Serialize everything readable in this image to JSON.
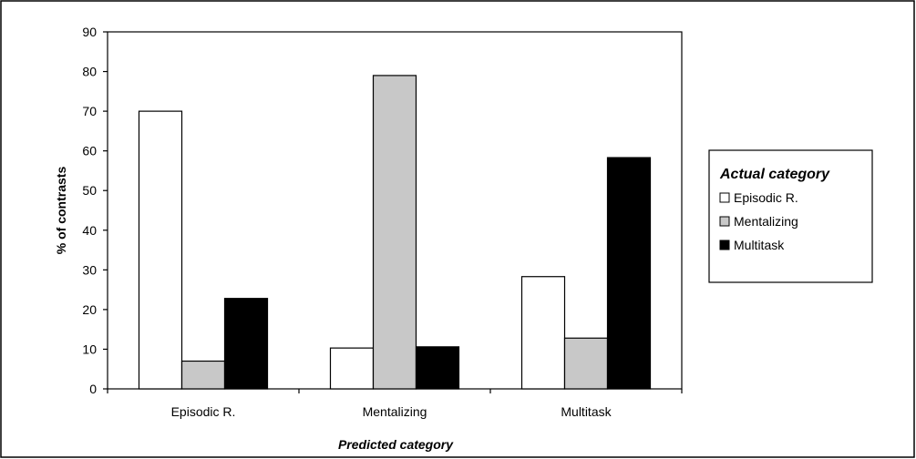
{
  "chart_data": {
    "type": "bar",
    "categories": [
      "Episodic R.",
      "Mentalizing",
      "Multitask"
    ],
    "series": [
      {
        "name": "Episodic R.",
        "values": [
          70,
          10.3,
          28.3
        ],
        "color": "#ffffff"
      },
      {
        "name": "Mentalizing",
        "values": [
          7,
          79,
          12.8
        ],
        "color": "#c8c8c8"
      },
      {
        "name": "Multitask",
        "values": [
          22.8,
          10.6,
          58.3
        ],
        "color": "#000000"
      }
    ],
    "title": "",
    "xlabel": "Predicted category",
    "ylabel": "% of contrasts",
    "ylim": [
      0,
      90
    ],
    "yticks": [
      "0",
      "10",
      "20",
      "30",
      "40",
      "50",
      "60",
      "70",
      "80",
      "90"
    ],
    "grid": false,
    "legend": {
      "title": "Actual category",
      "placement": "right"
    }
  }
}
